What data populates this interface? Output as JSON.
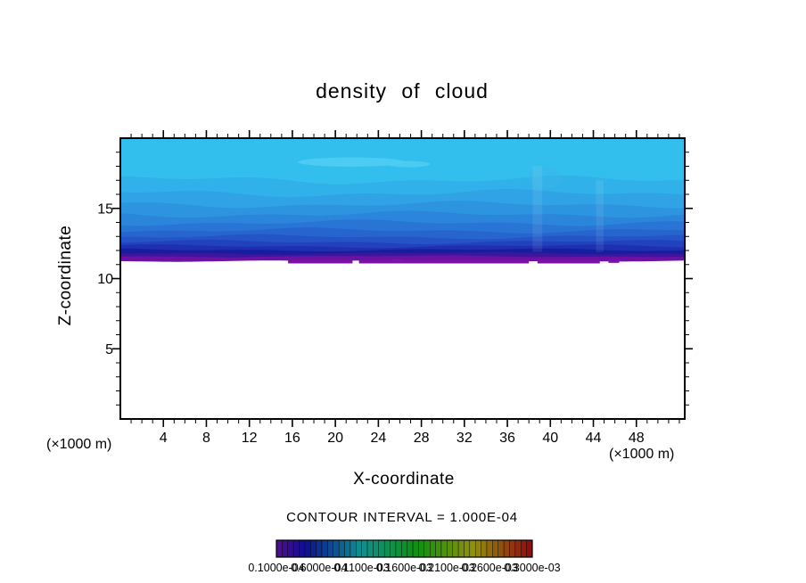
{
  "chart_data": {
    "type": "filled-contour",
    "title": "density of cloud",
    "xlabel": "X-coordinate",
    "ylabel": "Z-coordinate",
    "x_unit_label_left": "(×1000 m)",
    "x_unit_label_right": "(×1000 m)",
    "contour_interval_text": "CONTOUR INTERVAL = 1.000E-04",
    "xlim": [
      0,
      52.5
    ],
    "ylim": [
      0,
      20
    ],
    "x_ticks": [
      4,
      8,
      12,
      16,
      20,
      24,
      28,
      32,
      36,
      40,
      44,
      48
    ],
    "y_ticks": [
      5,
      10,
      15
    ],
    "x_minor_step": 1,
    "y_minor_step": 1,
    "field_bands": [
      {
        "z_top": 20.0,
        "z_bot": 17.0,
        "color": "#33BFED"
      },
      {
        "z_top": 17.0,
        "z_bot": 16.05,
        "color": "#31B1E9"
      },
      {
        "z_top": 16.05,
        "z_bot": 15.25,
        "color": "#2FA3E5"
      },
      {
        "z_top": 15.25,
        "z_bot": 14.55,
        "color": "#2D94E0"
      },
      {
        "z_top": 14.55,
        "z_bot": 13.95,
        "color": "#2B85DB"
      },
      {
        "z_top": 13.95,
        "z_bot": 13.4,
        "color": "#2975D5"
      },
      {
        "z_top": 13.4,
        "z_bot": 12.95,
        "color": "#2765CE"
      },
      {
        "z_top": 12.95,
        "z_bot": 12.58,
        "color": "#2454C6"
      },
      {
        "z_top": 12.58,
        "z_bot": 12.28,
        "color": "#2142BC"
      },
      {
        "z_top": 12.28,
        "z_bot": 12.02,
        "color": "#1E30B0"
      },
      {
        "z_top": 12.02,
        "z_bot": 11.78,
        "color": "#181C9E"
      },
      {
        "z_top": 11.78,
        "z_bot": 11.56,
        "color": "#3C169D"
      },
      {
        "z_top": 11.56,
        "z_bot": 11.28,
        "color": "#6C12A2"
      }
    ],
    "boundary_wiggle": [
      0,
      0.22,
      0.2,
      0.18,
      0.17,
      0.16,
      0.14,
      0.12,
      0.11,
      0.09,
      0.08,
      0.06,
      0.05,
      0.04
    ],
    "bottom_segments": [
      {
        "x0": 15.6,
        "x1": 21.6,
        "z_top": 11.32,
        "z_bot": 11.08,
        "color": "#7A12A6"
      },
      {
        "x0": 22.2,
        "x1": 38.0,
        "z_top": 11.32,
        "z_bot": 11.08,
        "color": "#7A12A6"
      },
      {
        "x0": 38.8,
        "x1": 44.6,
        "z_top": 11.32,
        "z_bot": 11.08,
        "color": "#7A12A6"
      },
      {
        "x0": 45.4,
        "x1": 46.4,
        "z_top": 11.32,
        "z_bot": 11.12,
        "color": "#7A12A6"
      }
    ],
    "patches": [
      {
        "x": 21.5,
        "z": 18.3,
        "rx": 5.0,
        "rz": 0.33,
        "color": "#4FCDF2",
        "opacity": 0.9
      },
      {
        "x": 26.8,
        "z": 18.15,
        "rx": 2.0,
        "rz": 0.22,
        "color": "#4FCDF2",
        "opacity": 0.85
      },
      {
        "x": 39.5,
        "z": 17.2,
        "rx": 1.6,
        "rz": 0.8,
        "color": "#39B6EA",
        "opacity": 0.5
      }
    ],
    "streaks": [
      {
        "x": 38.8,
        "half_w": 0.45,
        "z_top": 18.0,
        "z_bot": 11.9,
        "color": "rgba(255,255,255,0.08)"
      },
      {
        "x": 44.6,
        "half_w": 0.35,
        "z_top": 17.0,
        "z_bot": 11.9,
        "color": "rgba(255,255,255,0.08)"
      }
    ],
    "colorbar": {
      "segments": 45,
      "hue_start": 268,
      "hue_end": 0,
      "saturation": 82,
      "lightness": 31,
      "labels": [
        "0.1000e-04",
        "0.6000e-04",
        "0.1100e-03",
        "0.1600e-03",
        "0.2100e-03",
        "0.2600e-03",
        "0.3000e-03"
      ]
    }
  }
}
